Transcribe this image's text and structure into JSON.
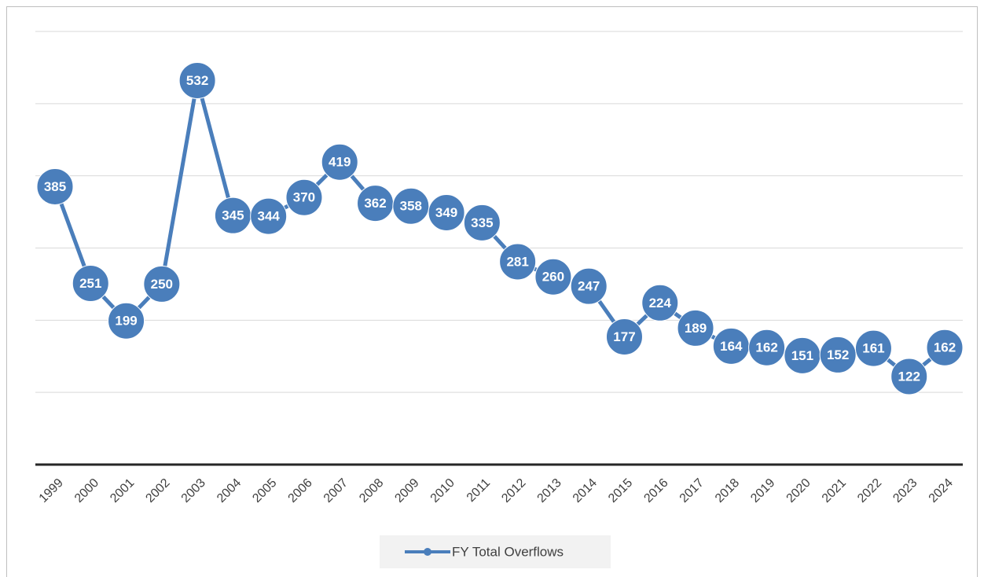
{
  "chart_data": {
    "type": "line",
    "categories": [
      "1999",
      "2000",
      "2001",
      "2002",
      "2003",
      "2004",
      "2005",
      "2006",
      "2007",
      "2008",
      "2009",
      "2010",
      "2011",
      "2012",
      "2013",
      "2014",
      "2015",
      "2016",
      "2017",
      "2018",
      "2019",
      "2020",
      "2021",
      "2022",
      "2023",
      "2024"
    ],
    "series": [
      {
        "name": "FY Total Overflows",
        "color": "#4a7ebb",
        "values": [
          385,
          251,
          199,
          250,
          532,
          345,
          344,
          370,
          419,
          362,
          358,
          349,
          335,
          281,
          260,
          247,
          177,
          224,
          189,
          164,
          162,
          151,
          152,
          161,
          122,
          162
        ]
      }
    ],
    "ylim": [
      0,
      600
    ],
    "yticks": [
      100,
      200,
      300,
      400,
      500,
      600
    ],
    "grid": true,
    "legend": "bottom"
  }
}
